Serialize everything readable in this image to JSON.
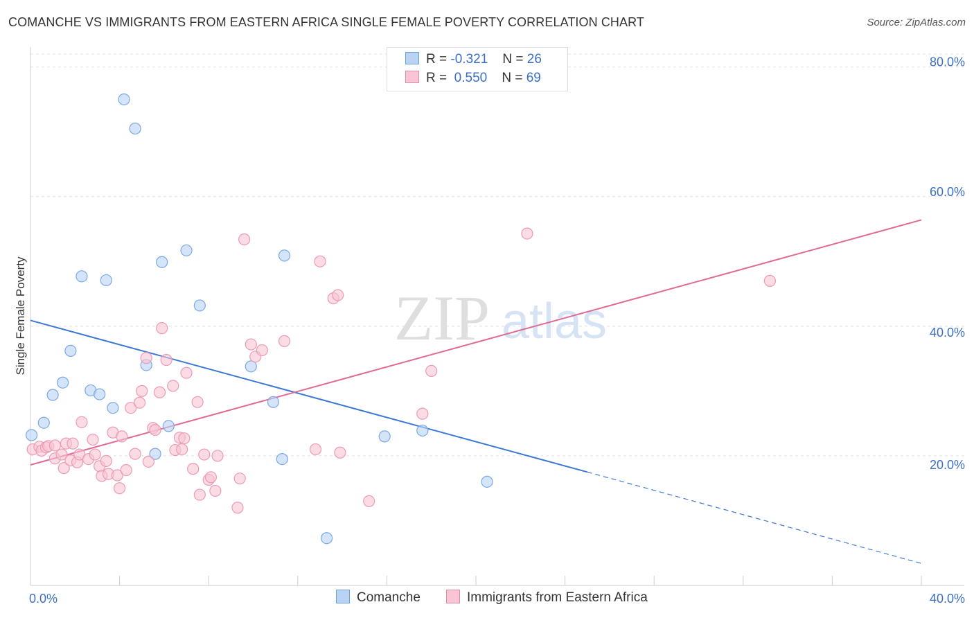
{
  "title": "COMANCHE VS IMMIGRANTS FROM EASTERN AFRICA SINGLE FEMALE POVERTY CORRELATION CHART",
  "source": "Source: ZipAtlas.com",
  "watermark": {
    "zip": "ZIP",
    "atlas": "atlas"
  },
  "legend": {
    "r_label": "R =",
    "n_label": "N =",
    "rows": [
      {
        "r": "-0.321",
        "n": "26",
        "fill": "#b9d3f5",
        "stroke": "#6a9fe0"
      },
      {
        "r": "0.550",
        "n": "69",
        "fill": "#f9c4d3",
        "stroke": "#e58aa5"
      }
    ]
  },
  "bottom_legend": {
    "items": [
      {
        "label": "Comanche",
        "fill": "#b9d3f5",
        "stroke": "#6a9fe0"
      },
      {
        "label": "Immigrants from Eastern Africa",
        "fill": "#f9c4d3",
        "stroke": "#e58aa5"
      }
    ]
  },
  "chart_data": {
    "type": "scatter",
    "title": "COMANCHE VS IMMIGRANTS FROM EASTERN AFRICA SINGLE FEMALE POVERTY CORRELATION CHART",
    "xlabel": "",
    "ylabel": "Single Female Poverty",
    "xlim": [
      0,
      40
    ],
    "ylim": [
      0,
      82
    ],
    "x_tick_labels": [
      {
        "value": 0,
        "label": "0.0%"
      },
      {
        "value": 40,
        "label": "40.0%"
      }
    ],
    "y_tick_labels": [
      {
        "value": 20,
        "label": "20.0%"
      },
      {
        "value": 40,
        "label": "40.0%"
      },
      {
        "value": 60,
        "label": "60.0%"
      },
      {
        "value": 80,
        "label": "80.0%"
      }
    ],
    "x_minor_ticks": [
      4,
      8,
      12,
      16,
      20,
      24,
      28,
      32,
      36
    ],
    "grid": true,
    "series": [
      {
        "name": "Comanche",
        "color": "#3b78d4",
        "fill": "#b9d3f5",
        "stroke": "#7aa8e3",
        "points": [
          [
            0.05,
            23.2
          ],
          [
            0.6,
            25.1
          ],
          [
            1.0,
            29.4
          ],
          [
            1.45,
            31.3
          ],
          [
            1.8,
            36.2
          ],
          [
            2.3,
            47.7
          ],
          [
            2.7,
            30.1
          ],
          [
            3.1,
            29.5
          ],
          [
            3.4,
            47.1
          ],
          [
            3.7,
            27.4
          ],
          [
            4.2,
            75.0
          ],
          [
            4.7,
            70.5
          ],
          [
            5.2,
            34.0
          ],
          [
            5.6,
            20.3
          ],
          [
            5.9,
            49.9
          ],
          [
            6.2,
            24.6
          ],
          [
            7.0,
            51.7
          ],
          [
            7.6,
            43.2
          ],
          [
            9.9,
            33.8
          ],
          [
            10.9,
            28.3
          ],
          [
            11.3,
            19.5
          ],
          [
            11.4,
            50.9
          ],
          [
            13.3,
            7.3
          ],
          [
            15.9,
            23.0
          ],
          [
            17.6,
            23.9
          ],
          [
            20.5,
            16.0
          ]
        ],
        "trend": {
          "x0": 0,
          "y0": 40.9,
          "x1": 25.0,
          "y1": 17.5,
          "dash_to_x": 40,
          "dash_to_y": 3.4
        }
      },
      {
        "name": "Immigrants from Eastern Africa",
        "color": "#e06a92",
        "fill": "#f9c4d3",
        "stroke": "#ec9ab4",
        "points": [
          [
            0.1,
            21.0
          ],
          [
            0.4,
            21.4
          ],
          [
            0.5,
            20.8
          ],
          [
            0.7,
            21.3
          ],
          [
            0.8,
            21.5
          ],
          [
            1.1,
            21.6
          ],
          [
            1.1,
            19.6
          ],
          [
            1.4,
            20.2
          ],
          [
            1.5,
            18.1
          ],
          [
            1.6,
            21.9
          ],
          [
            1.8,
            19.3
          ],
          [
            1.9,
            21.9
          ],
          [
            2.1,
            19.0
          ],
          [
            2.2,
            20.2
          ],
          [
            2.3,
            25.2
          ],
          [
            2.6,
            19.5
          ],
          [
            2.8,
            22.5
          ],
          [
            2.9,
            20.2
          ],
          [
            3.1,
            18.4
          ],
          [
            3.2,
            16.9
          ],
          [
            3.4,
            19.2
          ],
          [
            3.5,
            17.2
          ],
          [
            3.7,
            23.6
          ],
          [
            3.9,
            17.0
          ],
          [
            4.0,
            15.0
          ],
          [
            4.1,
            23.0
          ],
          [
            4.3,
            17.8
          ],
          [
            4.5,
            27.4
          ],
          [
            4.7,
            20.3
          ],
          [
            4.9,
            28.2
          ],
          [
            5.0,
            30.0
          ],
          [
            5.2,
            35.1
          ],
          [
            5.3,
            19.1
          ],
          [
            5.5,
            24.3
          ],
          [
            5.6,
            24.0
          ],
          [
            5.8,
            29.8
          ],
          [
            5.9,
            39.7
          ],
          [
            6.1,
            34.8
          ],
          [
            6.4,
            30.8
          ],
          [
            6.5,
            20.9
          ],
          [
            6.7,
            22.8
          ],
          [
            6.8,
            21.0
          ],
          [
            6.9,
            22.7
          ],
          [
            7.0,
            32.8
          ],
          [
            7.3,
            18.0
          ],
          [
            7.5,
            28.3
          ],
          [
            7.6,
            14.0
          ],
          [
            7.8,
            20.2
          ],
          [
            8.0,
            16.3
          ],
          [
            8.1,
            16.7
          ],
          [
            8.3,
            14.6
          ],
          [
            8.4,
            20.0
          ],
          [
            9.3,
            12.0
          ],
          [
            9.4,
            16.5
          ],
          [
            9.6,
            53.4
          ],
          [
            9.9,
            37.2
          ],
          [
            10.1,
            35.3
          ],
          [
            10.4,
            36.3
          ],
          [
            11.4,
            37.7
          ],
          [
            12.8,
            21.0
          ],
          [
            13.0,
            50.0
          ],
          [
            13.6,
            44.3
          ],
          [
            13.8,
            44.8
          ],
          [
            13.9,
            20.5
          ],
          [
            15.2,
            13.0
          ],
          [
            17.6,
            26.5
          ],
          [
            18.0,
            33.1
          ],
          [
            22.3,
            54.3
          ],
          [
            33.2,
            47.0
          ]
        ],
        "trend": {
          "x0": 0,
          "y0": 18.6,
          "x1": 40,
          "y1": 56.4
        }
      }
    ]
  }
}
